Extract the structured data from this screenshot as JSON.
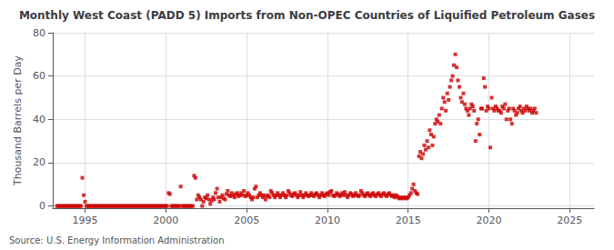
{
  "chart_data": {
    "type": "scatter",
    "title": "Monthly West Coast (PADD 5) Imports from Non-OPEC Countries of Liquified Petroleum Gases",
    "ylabel": "Thousand Barrels per Day",
    "annotation": "Source: U.S. Energy Information Administration",
    "color": "#cc0000",
    "marker": "square",
    "grid": true,
    "xlim": [
      1993.0,
      2026.5
    ],
    "ylim": [
      -1,
      80
    ],
    "xticks": [
      1995,
      2000,
      2005,
      2010,
      2015,
      2020,
      2025
    ],
    "yticks": [
      0,
      20,
      40,
      60,
      80
    ],
    "x": [
      1993.25,
      1993.33,
      1993.42,
      1993.5,
      1993.58,
      1993.67,
      1993.75,
      1993.83,
      1993.92,
      1994.0,
      1994.08,
      1994.17,
      1994.25,
      1994.33,
      1994.42,
      1994.5,
      1994.58,
      1994.67,
      1994.75,
      1994.83,
      1994.92,
      1995.0,
      1995.08,
      1995.17,
      1995.25,
      1995.33,
      1995.42,
      1995.5,
      1995.58,
      1995.67,
      1995.75,
      1995.83,
      1995.92,
      1996.0,
      1996.08,
      1996.17,
      1996.25,
      1996.33,
      1996.42,
      1996.5,
      1996.58,
      1996.67,
      1996.75,
      1996.83,
      1996.92,
      1997.0,
      1997.08,
      1997.17,
      1997.25,
      1997.33,
      1997.42,
      1997.5,
      1997.58,
      1997.67,
      1997.75,
      1997.83,
      1997.92,
      1998.0,
      1998.08,
      1998.17,
      1998.25,
      1998.33,
      1998.42,
      1998.5,
      1998.58,
      1998.67,
      1998.75,
      1998.83,
      1998.92,
      1999.0,
      1999.08,
      1999.17,
      1999.25,
      1999.33,
      1999.42,
      1999.5,
      1999.58,
      1999.67,
      1999.75,
      1999.83,
      1999.92,
      2000.0,
      2000.08,
      2000.17,
      2000.25,
      2000.33,
      2000.42,
      2000.5,
      2000.58,
      2000.67,
      2000.75,
      2000.83,
      2000.92,
      2001.0,
      2001.08,
      2001.17,
      2001.25,
      2001.33,
      2001.42,
      2001.5,
      2001.58,
      2001.67,
      2001.75,
      2001.83,
      2001.92,
      2002.0,
      2002.08,
      2002.17,
      2002.25,
      2002.33,
      2002.42,
      2002.5,
      2002.58,
      2002.67,
      2002.75,
      2002.83,
      2002.92,
      2003.0,
      2003.08,
      2003.17,
      2003.25,
      2003.33,
      2003.42,
      2003.5,
      2003.58,
      2003.67,
      2003.75,
      2003.83,
      2003.92,
      2004.0,
      2004.08,
      2004.17,
      2004.25,
      2004.33,
      2004.42,
      2004.5,
      2004.58,
      2004.67,
      2004.75,
      2004.83,
      2004.92,
      2005.0,
      2005.08,
      2005.17,
      2005.25,
      2005.33,
      2005.42,
      2005.5,
      2005.58,
      2005.67,
      2005.75,
      2005.83,
      2005.92,
      2006.0,
      2006.08,
      2006.17,
      2006.25,
      2006.33,
      2006.42,
      2006.5,
      2006.58,
      2006.67,
      2006.75,
      2006.83,
      2006.92,
      2007.0,
      2007.08,
      2007.17,
      2007.25,
      2007.33,
      2007.42,
      2007.5,
      2007.58,
      2007.67,
      2007.75,
      2007.83,
      2007.92,
      2008.0,
      2008.08,
      2008.17,
      2008.25,
      2008.33,
      2008.42,
      2008.5,
      2008.58,
      2008.67,
      2008.75,
      2008.83,
      2008.92,
      2009.0,
      2009.08,
      2009.17,
      2009.25,
      2009.33,
      2009.42,
      2009.5,
      2009.58,
      2009.67,
      2009.75,
      2009.83,
      2009.92,
      2010.0,
      2010.08,
      2010.17,
      2010.25,
      2010.33,
      2010.42,
      2010.5,
      2010.58,
      2010.67,
      2010.75,
      2010.83,
      2010.92,
      2011.0,
      2011.08,
      2011.17,
      2011.25,
      2011.33,
      2011.42,
      2011.5,
      2011.58,
      2011.67,
      2011.75,
      2011.83,
      2011.92,
      2012.0,
      2012.08,
      2012.17,
      2012.25,
      2012.33,
      2012.42,
      2012.5,
      2012.58,
      2012.67,
      2012.75,
      2012.83,
      2012.92,
      2013.0,
      2013.08,
      2013.17,
      2013.25,
      2013.33,
      2013.42,
      2013.5,
      2013.58,
      2013.67,
      2013.75,
      2013.83,
      2013.92,
      2014.0,
      2014.08,
      2014.17,
      2014.25,
      2014.33,
      2014.42,
      2014.5,
      2014.58,
      2014.67,
      2014.75,
      2014.83,
      2014.92,
      2015.0,
      2015.08,
      2015.17,
      2015.25,
      2015.33,
      2015.42,
      2015.5,
      2015.58,
      2015.67,
      2015.75,
      2015.83,
      2015.92,
      2016.0,
      2016.08,
      2016.17,
      2016.25,
      2016.33,
      2016.42,
      2016.5,
      2016.58,
      2016.67,
      2016.75,
      2016.83,
      2016.92,
      2017.0,
      2017.08,
      2017.17,
      2017.25,
      2017.33,
      2017.42,
      2017.5,
      2017.58,
      2017.67,
      2017.75,
      2017.83,
      2017.92,
      2018.0,
      2018.08,
      2018.17,
      2018.25,
      2018.33,
      2018.42,
      2018.5,
      2018.58,
      2018.67,
      2018.75,
      2018.83,
      2018.92,
      2019.0,
      2019.08,
      2019.17,
      2019.25,
      2019.33,
      2019.42,
      2019.5,
      2019.58,
      2019.67,
      2019.75,
      2019.83,
      2019.92,
      2020.0,
      2020.08,
      2020.17,
      2020.25,
      2020.33,
      2020.42,
      2020.5,
      2020.58,
      2020.67,
      2020.75,
      2020.83,
      2020.92,
      2021.0,
      2021.08,
      2021.17,
      2021.25,
      2021.33,
      2021.42,
      2021.5,
      2021.58,
      2021.67,
      2021.75,
      2021.83,
      2021.92,
      2022.0,
      2022.08,
      2022.17,
      2022.25,
      2022.33,
      2022.42,
      2022.5,
      2022.58,
      2022.67,
      2022.75,
      2022.83,
      2022.92
    ],
    "values": [
      0,
      0,
      0,
      0,
      0,
      0,
      0,
      0,
      0,
      0,
      0,
      0,
      0,
      0,
      0,
      0,
      0,
      0,
      0,
      13.0,
      5.0,
      2.0,
      0,
      0,
      0,
      0,
      0,
      0,
      0,
      0,
      0,
      0,
      0,
      0,
      0,
      0,
      0,
      0,
      0,
      0,
      0,
      0,
      0,
      0,
      0,
      0,
      0,
      0,
      0,
      0,
      0,
      0,
      0,
      0,
      0,
      0,
      0,
      0,
      0,
      0,
      0,
      0,
      0,
      0,
      0,
      0,
      0,
      0,
      0,
      0,
      0,
      0,
      0,
      0,
      0,
      0,
      0,
      0,
      0,
      0,
      0,
      0,
      0,
      6.0,
      5.5,
      0,
      0,
      0,
      0,
      0,
      0,
      0,
      9.0,
      0,
      0,
      0,
      0,
      0,
      0,
      0,
      0,
      0,
      14.0,
      13.0,
      3.0,
      5.0,
      4.0,
      3.0,
      0,
      2.0,
      4.0,
      3.5,
      5.0,
      3.0,
      1.0,
      2.5,
      4.0,
      3.0,
      6.0,
      8.0,
      4.0,
      2.0,
      4.0,
      5.0,
      3.5,
      3.0,
      5.5,
      7.0,
      5.0,
      4.5,
      6.0,
      5.0,
      4.0,
      5.5,
      6.0,
      4.5,
      5.0,
      6.0,
      5.0,
      7.0,
      4.5,
      5.0,
      6.0,
      5.0,
      4.0,
      3.0,
      4.0,
      8.0,
      9.0,
      4.0,
      5.0,
      6.0,
      5.0,
      4.0,
      5.0,
      3.0,
      4.5,
      5.0,
      4.0,
      7.0,
      6.0,
      5.0,
      4.0,
      5.0,
      6.0,
      5.0,
      4.0,
      5.0,
      6.0,
      5.0,
      4.0,
      5.0,
      7.0,
      6.0,
      5.0,
      4.5,
      5.5,
      6.0,
      5.0,
      4.0,
      5.0,
      6.5,
      5.0,
      4.0,
      5.0,
      6.0,
      5.0,
      4.5,
      5.0,
      6.0,
      5.0,
      4.5,
      5.5,
      6.0,
      5.0,
      4.0,
      5.0,
      6.0,
      5.0,
      4.5,
      5.5,
      6.0,
      5.0,
      6.5,
      7.0,
      5.0,
      4.5,
      5.0,
      6.0,
      5.5,
      4.5,
      5.0,
      6.0,
      5.0,
      6.5,
      5.0,
      4.0,
      5.0,
      6.0,
      5.5,
      4.5,
      5.0,
      6.0,
      5.0,
      4.5,
      5.0,
      7.0,
      6.0,
      5.0,
      4.5,
      5.5,
      6.0,
      5.0,
      4.5,
      5.5,
      6.0,
      5.0,
      4.5,
      5.5,
      6.0,
      5.0,
      4.5,
      5.5,
      6.0,
      5.0,
      4.5,
      5.5,
      6.0,
      5.0,
      4.5,
      5.0,
      4.0,
      5.0,
      4.5,
      3.5,
      4.0,
      3.5,
      4.0,
      3.5,
      4.0,
      3.5,
      4.0,
      5.0,
      6.0,
      8.0,
      10.0,
      7.0,
      6.0,
      5.5,
      23.0,
      25.0,
      22.0,
      24.0,
      28.0,
      26.0,
      30.0,
      27.0,
      35.0,
      33.0,
      28.0,
      32.0,
      38.0,
      40.0,
      39.0,
      42.0,
      38.0,
      45.0,
      50.0,
      48.0,
      44.0,
      52.0,
      49.0,
      55.0,
      58.0,
      60.0,
      65.0,
      70.0,
      64.0,
      58.0,
      55.0,
      50.0,
      48.0,
      52.0,
      47.0,
      45.0,
      44.0,
      42.0,
      45.0,
      47.0,
      46.0,
      44.0,
      30.0,
      38.0,
      40.0,
      33.0,
      45.0,
      45.0,
      59.0,
      55.0,
      44.0,
      46.0,
      45.0,
      27.0,
      50.0,
      45.0,
      44.0,
      46.0,
      45.0,
      44.0,
      44.0,
      43.0,
      46.0,
      45.0,
      47.0,
      40.0,
      44.0,
      45.0,
      40.0,
      38.0,
      45.0,
      44.0,
      42.0,
      43.0,
      45.0,
      46.0,
      44.0,
      43.0,
      45.0,
      44.0,
      46.0,
      45.0,
      44.0,
      45.0,
      43.0,
      44.0,
      45.0,
      43.0
    ]
  }
}
